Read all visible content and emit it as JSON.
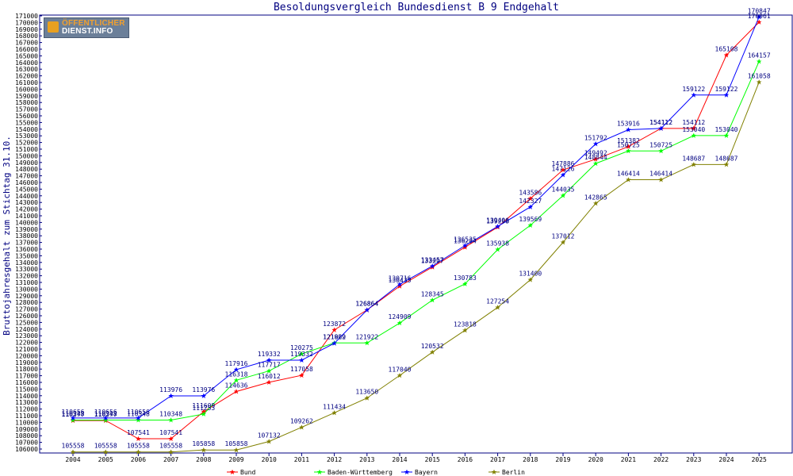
{
  "logo": {
    "line1": "ÖFFENTLICHER",
    "line2": "DIENST.INFO"
  },
  "chart_data": {
    "type": "line",
    "title": "Besoldungsvergleich Bundesdienst B 9 Endgehalt",
    "ylabel": "Bruttojahresgehalt zum Stichtag 31.10.",
    "xlabel": "",
    "ylim": [
      106000,
      171000
    ],
    "ytick_step": 1000,
    "grid": false,
    "legend_position": "bottom",
    "x": [
      "2004",
      "2005",
      "2006",
      "2007",
      "2008",
      "2009",
      "2010",
      "2011",
      "2012",
      "2013",
      "2014",
      "2015",
      "2016",
      "2017",
      "2018",
      "2019",
      "2020",
      "2021",
      "2022",
      "2023",
      "2024",
      "2025"
    ],
    "series": [
      {
        "name": "Bund",
        "color": "#ff0000",
        "values": [
          110277,
          110277,
          107541,
          107541,
          111609,
          114636,
          116012,
          117058,
          123872,
          126864,
          130433,
          133297,
          136284,
          139298,
          143586,
          147886,
          149492,
          151382,
          154112,
          154112,
          165108,
          170061
        ]
      },
      {
        "name": "Baden-Württemberg",
        "color": "#00ff00",
        "values": [
          110348,
          110348,
          110348,
          110348,
          111253,
          116318,
          117717,
          120275,
          121922,
          121922,
          124909,
          128345,
          130783,
          135938,
          139569,
          144035,
          148844,
          150725,
          150725,
          153040,
          153040,
          164157
        ]
      },
      {
        "name": "Bayern",
        "color": "#0000ff",
        "values": [
          110656,
          110656,
          110656,
          113976,
          113976,
          117916,
          119332,
          119332,
          121869,
          126864,
          130716,
          133457,
          136535,
          139406,
          142327,
          147126,
          151792,
          153916,
          154112,
          159122,
          159122,
          170847
        ]
      },
      {
        "name": "Berlin",
        "color": "#808000",
        "values": [
          105558,
          105558,
          105558,
          105558,
          105858,
          105858,
          107132,
          109262,
          111434,
          113650,
          117040,
          120532,
          123818,
          127254,
          131400,
          137012,
          142865,
          146414,
          146414,
          148687,
          148687,
          161058
        ]
      }
    ]
  }
}
